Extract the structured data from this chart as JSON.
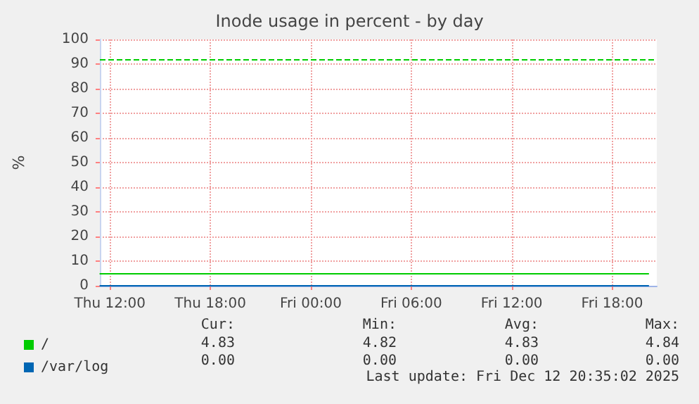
{
  "chart_data": {
    "type": "line",
    "title": "Inode usage in percent - by day",
    "ylabel": "%",
    "x": [
      "2025-12-11T11:25",
      "2025-12-12T20:10"
    ],
    "series": [
      {
        "name": "/",
        "color": "#00cc00",
        "values": [
          4.83,
          4.83
        ]
      },
      {
        "name": "/var/log",
        "color": "#0066b3",
        "values": [
          0,
          0
        ]
      }
    ],
    "xlim": [
      "2025-12-11T11:24",
      "2025-12-12T20:40"
    ],
    "xticks": [
      {
        "value": "2025-12-11T12:00",
        "label": "Thu 12:00"
      },
      {
        "value": "2025-12-11T18:00",
        "label": "Thu 18:00"
      },
      {
        "value": "2025-12-12T00:00",
        "label": "Fri 00:00"
      },
      {
        "value": "2025-12-12T06:00",
        "label": "Fri 06:00"
      },
      {
        "value": "2025-12-12T12:00",
        "label": "Fri 12:00"
      },
      {
        "value": "2025-12-12T18:00",
        "label": "Fri 18:00"
      }
    ],
    "ylim": [
      0,
      100
    ],
    "yticks": [
      0,
      10,
      20,
      30,
      40,
      50,
      60,
      70,
      80,
      90,
      100
    ],
    "ref_lines": [
      {
        "axis": "y",
        "value": 92,
        "label": null,
        "color": "#00cc00",
        "line_style": "dashed"
      }
    ],
    "grid": true,
    "legend": "bottom left",
    "marker": "none",
    "line_style": "solid",
    "annotations": [
      "Cur:",
      "Min:",
      "Avg:",
      "Max:",
      "4.83",
      "4.82",
      "4.83",
      "4.84",
      "0.00",
      "0.00",
      "0.00",
      "0.00",
      "Last update: Fri Dec 12 20:35:02 2025"
    ]
  }
}
